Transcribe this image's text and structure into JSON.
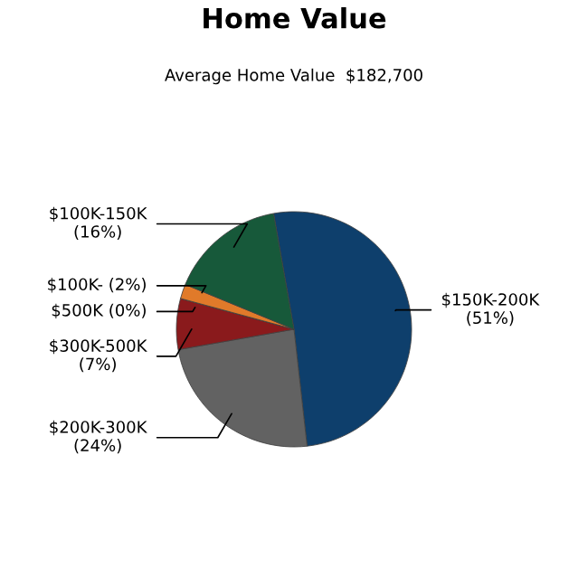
{
  "chart_data": {
    "type": "pie",
    "title": "Home Value",
    "subtitle": "Average Home Value  $182,700",
    "categories": [
      "$150K-200K",
      "$200K-300K",
      "$300K-500K",
      "$500K",
      "$100K-",
      "$100K-150K"
    ],
    "values": [
      51,
      24,
      7,
      0,
      2,
      16
    ],
    "value_labels": [
      "(51%)",
      "(24%)",
      "(7%)",
      "(0%)",
      "(2%)",
      "(16%)"
    ],
    "colors": [
      "#0e3f6c",
      "#626262",
      "#8a1a1c",
      "#6a2a6a",
      "#e07a2a",
      "#17593a"
    ]
  }
}
